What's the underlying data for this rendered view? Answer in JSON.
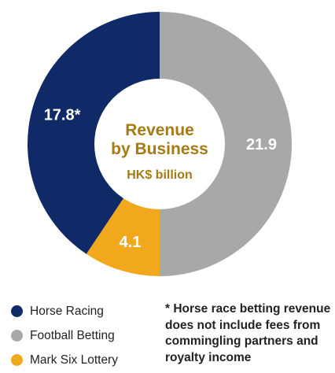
{
  "chart_data": {
    "type": "pie",
    "style": "donut",
    "title": "Revenue by Business",
    "center_title_lines": [
      "Revenue",
      "by Business"
    ],
    "unit": "HK$ billion",
    "slices": [
      {
        "name": "Football Betting",
        "value": 21.9,
        "label": "21.9",
        "color": "#a7a8aa"
      },
      {
        "name": "Mark Six Lottery",
        "value": 4.1,
        "label": "4.1",
        "color": "#f2a81d"
      },
      {
        "name": "Horse Racing",
        "value": 17.8,
        "label": "17.8*",
        "color": "#0f2a67"
      }
    ],
    "legend_position": "bottom-left",
    "center_text_color": "#a77a12"
  },
  "legend": {
    "items": [
      {
        "label": "Horse Racing",
        "color": "#0f2a67"
      },
      {
        "label": "Football Betting",
        "color": "#a7a8aa"
      },
      {
        "label": "Mark Six Lottery",
        "color": "#f2a81d"
      }
    ]
  },
  "footnote": {
    "text": "* Horse race betting revenue does not include fees from commingling partners and royalty income"
  }
}
